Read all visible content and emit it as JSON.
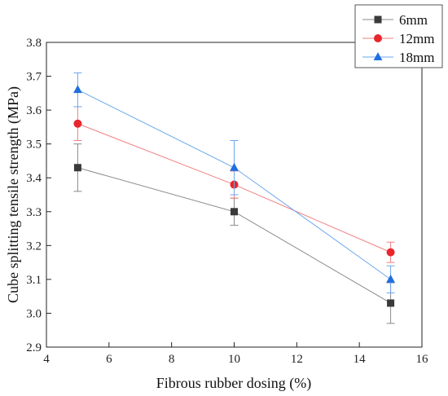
{
  "chart_data": {
    "type": "line",
    "xlabel": "Fibrous rubber dosing (%)",
    "ylabel": "Cube splitting tensile strength (MPa)",
    "xlim": [
      4,
      16
    ],
    "ylim": [
      2.9,
      3.8
    ],
    "xticks": [
      4,
      6,
      8,
      10,
      12,
      14,
      16
    ],
    "yticks": [
      2.9,
      3.0,
      3.1,
      3.2,
      3.3,
      3.4,
      3.5,
      3.6,
      3.7,
      3.8
    ],
    "x": [
      5,
      10,
      15
    ],
    "grid": false,
    "legend_position": "top-right (outside plot)",
    "series": [
      {
        "name": "6mm",
        "marker": "square",
        "color": "#3a3a3a",
        "line_color": "#8a8a8a",
        "values": [
          3.43,
          3.3,
          3.03
        ],
        "error": [
          0.07,
          0.04,
          0.06
        ]
      },
      {
        "name": "12mm",
        "marker": "circle",
        "color": "#e8262b",
        "line_color": "#f07f7f",
        "values": [
          3.56,
          3.38,
          3.18
        ],
        "error": [
          0.05,
          0.04,
          0.03
        ]
      },
      {
        "name": "18mm",
        "marker": "triangle",
        "color": "#1f6fe0",
        "line_color": "#6ea6ee",
        "values": [
          3.66,
          3.43,
          3.1
        ],
        "error": [
          0.05,
          0.08,
          0.04
        ]
      }
    ]
  }
}
